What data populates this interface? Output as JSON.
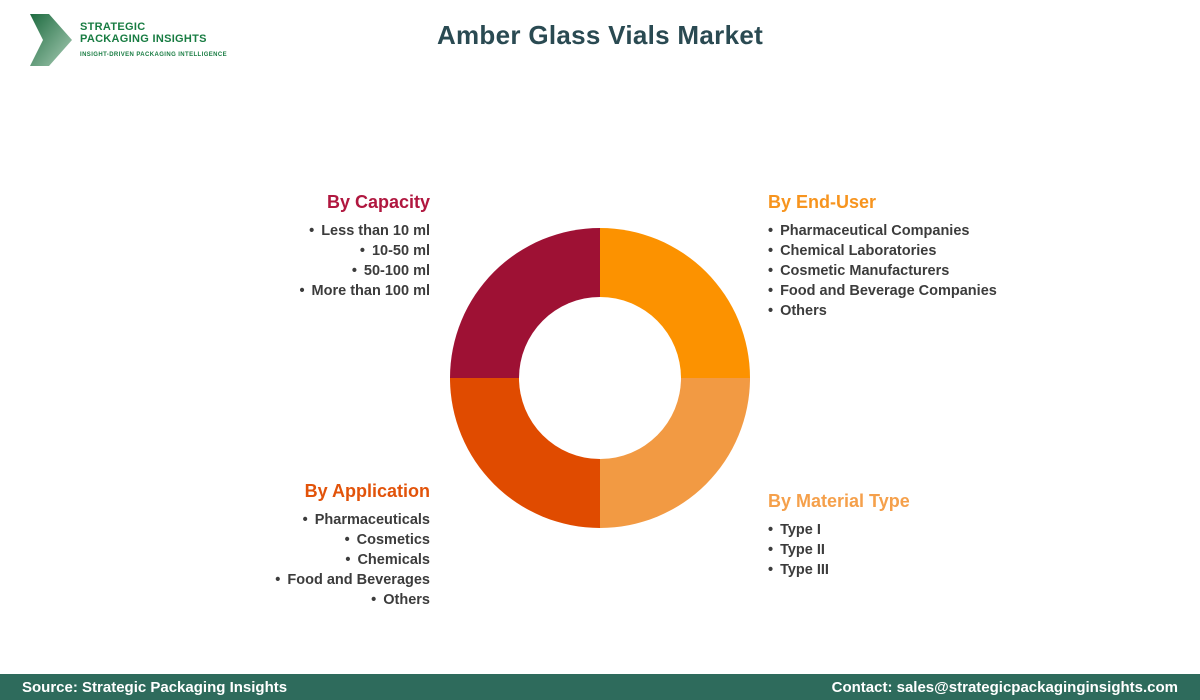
{
  "logo": {
    "line1": "STRATEGIC",
    "line2": "PACKAGING INSIGHTS",
    "tagline": "INSIGHT-DRIVEN PACKAGING INTELLIGENCE"
  },
  "title": "Amber Glass Vials Market",
  "chart_data": {
    "type": "pie",
    "subtype": "donut",
    "title": "Amber Glass Vials Market",
    "legend_position": "around",
    "segments": [
      {
        "label": "By Capacity",
        "value": 25,
        "quadrant": "top-left",
        "color": "#9E1134",
        "heading_color": "#B0173F",
        "items": [
          "Less than 10 ml",
          "10-50 ml",
          "50-100 ml",
          "More than 100 ml"
        ]
      },
      {
        "label": "By End-User",
        "value": 25,
        "quadrant": "top-right",
        "color": "#FC9200",
        "heading_color": "#F7941E",
        "items": [
          "Pharmaceutical Companies",
          "Chemical Laboratories",
          "Cosmetic Manufacturers",
          "Food and Beverage Companies",
          "Others"
        ]
      },
      {
        "label": "By Material Type",
        "value": 25,
        "quadrant": "bottom-right",
        "color": "#F29A43",
        "heading_color": "#F5A04B",
        "items": [
          "Type I",
          "Type II",
          "Type III"
        ]
      },
      {
        "label": "By Application",
        "value": 25,
        "quadrant": "bottom-left",
        "color": "#E04B00",
        "heading_color": "#E2530A",
        "items": [
          "Pharmaceuticals",
          "Cosmetics",
          "Chemicals",
          "Food and Beverages",
          "Others"
        ]
      }
    ]
  },
  "footer": {
    "source": "Source: Strategic Packaging Insights",
    "contact": "Contact: sales@strategicpackaginginsights.com"
  },
  "colors": {
    "title": "#2A4A52",
    "footer_bg": "#2E6B5C",
    "logo_green": "#187C42",
    "list_text": "#3C3C3C"
  }
}
